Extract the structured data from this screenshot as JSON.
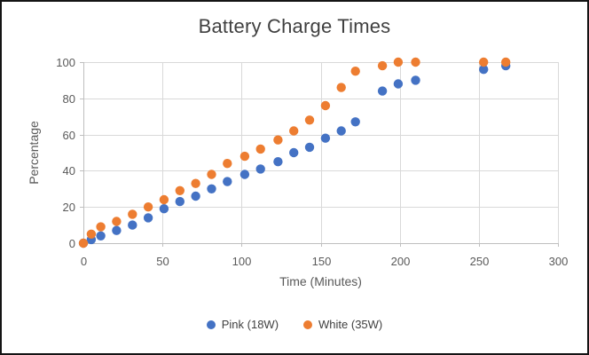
{
  "chart": {
    "title": "Battery Charge Times",
    "x_axis_title": "Time (Minutes)",
    "y_axis_title": "Percentage"
  },
  "chart_data": {
    "type": "scatter",
    "title": "Battery Charge Times",
    "xlabel": "Time (Minutes)",
    "ylabel": "Percentage",
    "xlim": [
      0,
      300
    ],
    "ylim": [
      0,
      100
    ],
    "xticks": [
      0,
      50,
      100,
      150,
      200,
      250,
      300
    ],
    "yticks": [
      0,
      20,
      40,
      60,
      80,
      100
    ],
    "grid": true,
    "legend_position": "bottom-center",
    "x": [
      0,
      5,
      11,
      21,
      31,
      41,
      51,
      61,
      71,
      81,
      91,
      102,
      112,
      123,
      133,
      143,
      153,
      163,
      172,
      189,
      199,
      210,
      253,
      267
    ],
    "series": [
      {
        "name": "Pink (18W)",
        "color": "#4472C4",
        "values": [
          0,
          2,
          4,
          7,
          10,
          14,
          19,
          23,
          26,
          30,
          34,
          38,
          41,
          45,
          50,
          53,
          58,
          62,
          67,
          84,
          88,
          90,
          96,
          98
        ]
      },
      {
        "name": "White (35W)",
        "color": "#ED7D31",
        "values": [
          0,
          5,
          9,
          12,
          16,
          20,
          24,
          29,
          33,
          38,
          44,
          48,
          52,
          57,
          62,
          68,
          76,
          86,
          95,
          98,
          100,
          100,
          100,
          100
        ]
      }
    ]
  },
  "colors": {
    "gridline": "#D9D9D9",
    "axis_line": "#BFBFBF",
    "tick_text": "#595959",
    "title_text": "#404040",
    "point_blue": "#4472C4",
    "point_orange": "#ED7D31",
    "frame": "#141414"
  }
}
